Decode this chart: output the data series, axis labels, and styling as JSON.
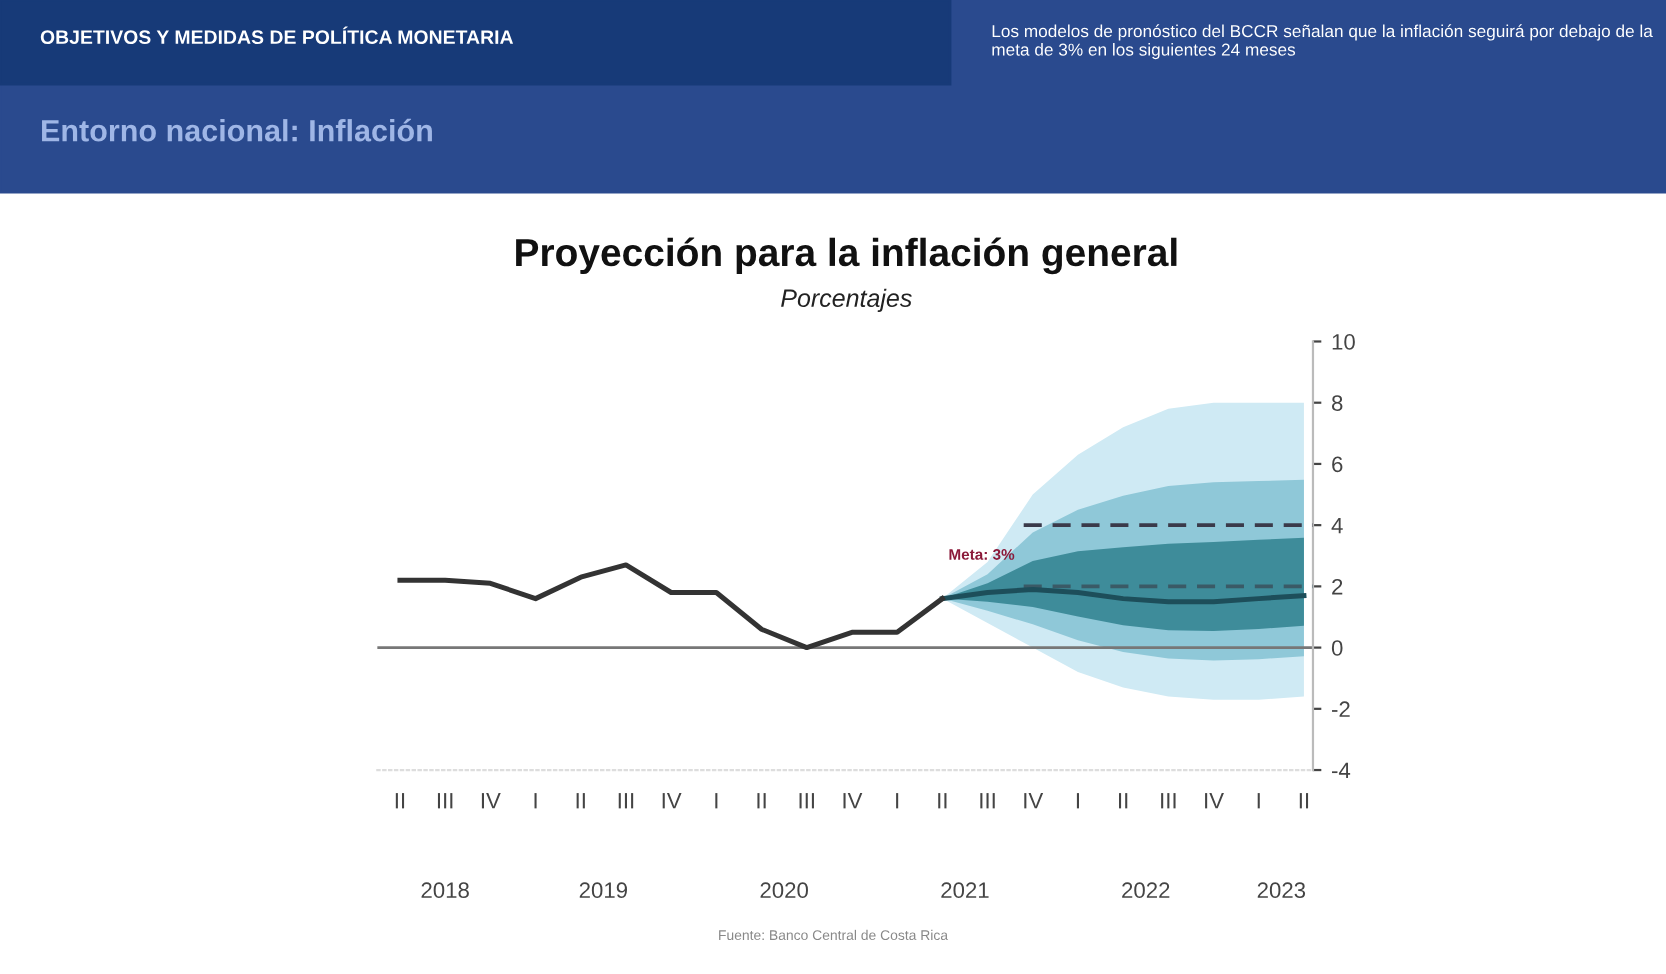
{
  "chart_data": {
    "type": "line",
    "title": "Proyección para la inflación general",
    "subtitle": "Porcentajes",
    "categories": [
      "II",
      "III",
      "IV",
      "I",
      "II",
      "III",
      "IV",
      "I",
      "II",
      "III",
      "IV",
      "I",
      "II",
      "III",
      "IV",
      "I",
      "II",
      "III",
      "IV",
      "I",
      "II"
    ],
    "series": [
      {
        "type": "line",
        "color": "#1d4e5a",
        "values": [
          null,
          null,
          null,
          null,
          null,
          null,
          null,
          null,
          null,
          null,
          null,
          null,
          1.6,
          1.8,
          1.9,
          1.8,
          1.6,
          1.5,
          1.5,
          1.6,
          1.7
        ],
        "lower": [
          null,
          null,
          null,
          null,
          null,
          null,
          null,
          null,
          null,
          null,
          null,
          null,
          1.6,
          0.8,
          0.0,
          -0.8,
          -1.3,
          -1.6,
          -1.7,
          -1.7,
          -1.6
        ],
        "upper": [
          null,
          null,
          null,
          null,
          null,
          null,
          null,
          null,
          null,
          null,
          null,
          null,
          1.6,
          2.8,
          5.0,
          6.3,
          7.2,
          7.8,
          8.0,
          8.0,
          8.0
        ]
      },
      {
        "type": "line",
        "color": "#333333",
        "values": [
          2.2,
          2.2,
          2.1,
          1.6,
          2.3,
          2.7,
          1.8,
          1.8,
          0.6,
          0.0,
          0.5,
          0.5,
          1.6,
          null,
          null,
          null,
          null,
          null,
          null,
          null,
          null
        ]
      }
    ],
    "ylim": [
      -4,
      10
    ],
    "yticks": [
      -4,
      -2,
      0,
      2,
      4,
      6,
      8,
      10
    ],
    "ref_lines": [
      {
        "axis": "y",
        "value": 0,
        "color": "#777777",
        "line_style": "solid"
      },
      {
        "axis": "y",
        "value": 4,
        "color": "#3a3a4a",
        "line_style": "dashed"
      },
      {
        "axis": "y",
        "value": 2,
        "color": "#3a5a66",
        "line_style": "dashed"
      }
    ],
    "grid": false,
    "legend": false,
    "annotations": [
      "2018",
      "2019",
      "2020",
      "2021",
      "2022",
      "2023",
      "OBJETIVOS Y MEDIDAS DE POLÍTICA MONETARIA",
      "Entorno nacional: Inflación",
      "Los modelos de pronóstico del BCCR señalan que la inflación seguirá por debajo de la meta de 3% en los siguientes 24 meses",
      "Fuente: Banco Central de Costa Rica",
      {
        "text": "Meta: 3%",
        "y": 3
      }
    ]
  }
}
